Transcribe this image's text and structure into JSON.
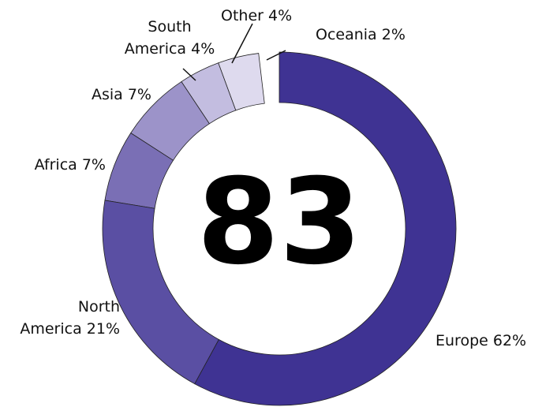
{
  "chart_data": {
    "type": "donut",
    "center_label": "83",
    "categories": [
      "Europe",
      "North America",
      "Africa",
      "Asia",
      "South America",
      "Other",
      "Oceania"
    ],
    "values": [
      62,
      21,
      7,
      7,
      4,
      4,
      2
    ],
    "value_labels": [
      "62%",
      "21%",
      "7%",
      "7%",
      "4%",
      "4%",
      "2%"
    ],
    "colors": [
      "#3f3393",
      "#5a4fa3",
      "#7a6fb5",
      "#9c93c9",
      "#c3bde0",
      "#dedaee",
      "#ffffff"
    ]
  }
}
